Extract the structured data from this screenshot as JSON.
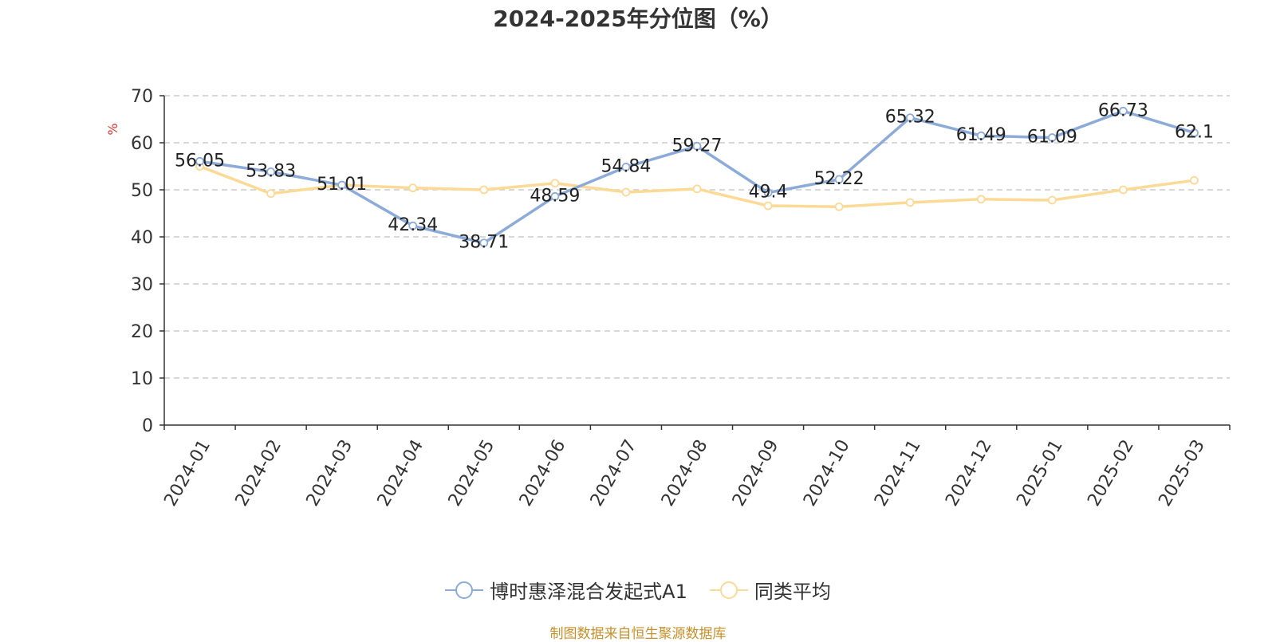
{
  "title": "2024-2025年分位图（%）",
  "source": "制图数据来自恒生聚源数据库",
  "colors": {
    "series1": "#8cabd8",
    "series2": "#fcd995",
    "grid": "#cccccc",
    "axis": "#333333",
    "unit": "#e03030"
  },
  "chart_data": {
    "type": "line",
    "title": "2024-2025年分位图（%）",
    "ylabel": "%",
    "xlabel": "",
    "ylim": [
      0,
      70
    ],
    "yticks": [
      0,
      10,
      20,
      30,
      40,
      50,
      60,
      70
    ],
    "grid": true,
    "legend_position": "bottom",
    "categories": [
      "2024-01",
      "2024-02",
      "2024-03",
      "2024-04",
      "2024-05",
      "2024-06",
      "2024-07",
      "2024-08",
      "2024-09",
      "2024-10",
      "2024-11",
      "2024-12",
      "2025-01",
      "2025-02",
      "2025-03"
    ],
    "series": [
      {
        "name": "博时惠泽混合发起式A1",
        "values": [
          56.05,
          53.83,
          51.01,
          42.34,
          38.71,
          48.59,
          54.84,
          59.27,
          49.4,
          52.22,
          65.32,
          61.49,
          61.09,
          66.73,
          62.1
        ],
        "labels": [
          "56.05",
          "53.83",
          "51.01",
          "42.34",
          "38.71",
          "48.59",
          "54.84",
          "59.27",
          "49.4",
          "52.22",
          "65.32",
          "61.49",
          "61.09",
          "66.73",
          "62.1"
        ]
      },
      {
        "name": "同类平均",
        "values": [
          55.0,
          49.2,
          51.0,
          50.4,
          50.0,
          51.4,
          49.5,
          50.2,
          46.6,
          46.4,
          47.3,
          48.0,
          47.8,
          50.0,
          52.0
        ]
      }
    ]
  }
}
